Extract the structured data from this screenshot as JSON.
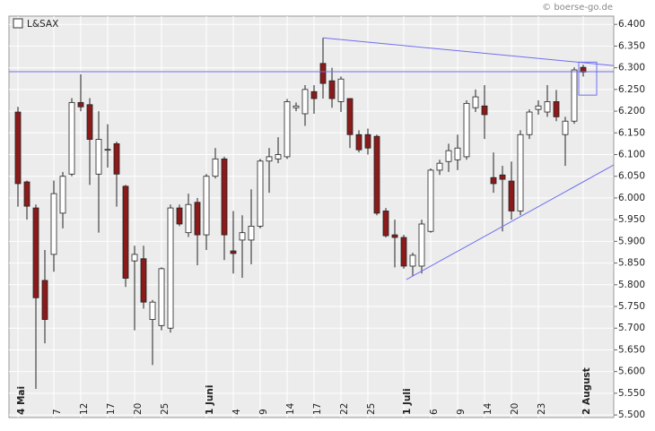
{
  "chart_data": {
    "type": "candlestick",
    "series_name": "L&SAX",
    "source": "© boerse-go.de",
    "categories": [
      "4 Mai",
      null,
      null,
      null,
      "7",
      null,
      null,
      "12",
      null,
      null,
      "17",
      null,
      null,
      "20",
      null,
      null,
      "25",
      null,
      null,
      null,
      null,
      "1 Juni",
      null,
      null,
      "4",
      null,
      null,
      "9",
      null,
      null,
      "14",
      null,
      null,
      "17",
      null,
      null,
      "22",
      null,
      null,
      "25",
      null,
      null,
      null,
      "1 Juli",
      null,
      null,
      "6",
      null,
      null,
      "9",
      null,
      null,
      "14",
      null,
      null,
      "20",
      null,
      null,
      "23",
      null,
      null,
      null,
      null,
      "2 August"
    ],
    "open": [
      6.198,
      6.037,
      5.977,
      5.81,
      5.87,
      5.965,
      6.055,
      6.22,
      6.215,
      6.055,
      6.11,
      6.125,
      6.027,
      5.855,
      5.86,
      5.72,
      5.706,
      5.7,
      5.977,
      5.92,
      5.99,
      5.915,
      6.05,
      6.09,
      5.878,
      5.903,
      5.903,
      5.935,
      6.085,
      6.09,
      6.095,
      6.208,
      6.194,
      6.245,
      6.31,
      6.27,
      6.222,
      6.229,
      6.146,
      6.146,
      6.142,
      5.97,
      5.915,
      5.909,
      5.843,
      5.843,
      5.923,
      6.064,
      6.084,
      6.088,
      6.095,
      6.208,
      6.212,
      6.047,
      6.053,
      6.039,
      5.97,
      6.146,
      6.204,
      6.198,
      6.222,
      6.146,
      6.177,
      6.301
    ],
    "high": [
      6.21,
      6.04,
      5.985,
      5.88,
      6.04,
      6.06,
      6.23,
      6.285,
      6.23,
      6.2,
      6.17,
      6.13,
      6.03,
      5.89,
      5.89,
      5.765,
      5.84,
      5.985,
      5.985,
      6.01,
      6.0,
      6.055,
      6.115,
      6.095,
      5.97,
      5.96,
      6.02,
      6.09,
      6.115,
      6.14,
      6.228,
      6.22,
      6.26,
      6.26,
      6.369,
      6.3,
      6.28,
      6.23,
      6.156,
      6.16,
      6.146,
      5.977,
      5.95,
      5.915,
      5.874,
      5.95,
      6.068,
      6.088,
      6.125,
      6.146,
      6.225,
      6.25,
      6.26,
      6.105,
      6.074,
      6.084,
      6.156,
      6.204,
      6.225,
      6.26,
      6.249,
      6.187,
      6.301,
      6.307
    ],
    "low": [
      5.98,
      5.95,
      5.56,
      5.665,
      5.83,
      5.93,
      6.05,
      6.2,
      6.03,
      5.92,
      6.07,
      5.98,
      5.795,
      5.695,
      5.745,
      5.615,
      5.695,
      5.69,
      5.935,
      5.91,
      5.845,
      5.88,
      6.045,
      5.857,
      5.826,
      5.816,
      5.847,
      5.93,
      6.012,
      6.08,
      6.09,
      6.2,
      6.166,
      6.194,
      6.229,
      6.208,
      6.198,
      6.115,
      6.105,
      6.1,
      5.96,
      5.909,
      5.84,
      5.837,
      5.82,
      5.826,
      5.92,
      6.053,
      6.06,
      6.064,
      6.088,
      6.198,
      6.136,
      6.012,
      5.923,
      5.95,
      5.96,
      6.136,
      6.192,
      6.187,
      6.177,
      6.074,
      6.171,
      6.28
    ],
    "close": [
      6.033,
      5.981,
      5.77,
      5.72,
      6.01,
      6.05,
      6.22,
      6.21,
      6.135,
      6.135,
      6.112,
      6.055,
      5.815,
      5.87,
      5.76,
      5.76,
      5.837,
      5.977,
      5.94,
      5.985,
      5.915,
      6.05,
      6.09,
      5.915,
      5.872,
      5.92,
      5.935,
      6.085,
      6.095,
      6.1,
      6.222,
      6.212,
      6.25,
      6.229,
      6.264,
      6.229,
      6.274,
      6.146,
      6.111,
      6.115,
      5.965,
      5.913,
      5.909,
      5.843,
      5.868,
      5.94,
      6.064,
      6.08,
      6.109,
      6.115,
      6.218,
      6.233,
      6.192,
      6.033,
      6.043,
      5.97,
      6.146,
      6.198,
      6.212,
      6.222,
      6.187,
      6.177,
      6.295,
      6.29
    ],
    "up_color": "#ffffff",
    "down_color": "#8b1a1a",
    "line_color": "#6f6ff0",
    "ylim": [
      5.494,
      6.419
    ],
    "yticks": [
      {
        "value": 5.5,
        "label": "5.500"
      },
      {
        "value": 5.55,
        "label": "5.550"
      },
      {
        "value": 5.6,
        "label": "5.600"
      },
      {
        "value": 5.65,
        "label": "5.650"
      },
      {
        "value": 5.7,
        "label": "5.700"
      },
      {
        "value": 5.75,
        "label": "5.750"
      },
      {
        "value": 5.8,
        "label": "5.800"
      },
      {
        "value": 5.85,
        "label": "5.850"
      },
      {
        "value": 5.9,
        "label": "5.900"
      },
      {
        "value": 5.95,
        "label": "5.950"
      },
      {
        "value": 6.0,
        "label": "6.000"
      },
      {
        "value": 6.05,
        "label": "6.050"
      },
      {
        "value": 6.1,
        "label": "6.100"
      },
      {
        "value": 6.15,
        "label": "6.150"
      },
      {
        "value": 6.2,
        "label": "6.200"
      },
      {
        "value": 6.25,
        "label": "6.250"
      },
      {
        "value": 6.3,
        "label": "6.300"
      },
      {
        "value": 6.35,
        "label": "6.350"
      },
      {
        "value": 6.4,
        "label": "6.400"
      }
    ],
    "grid": true,
    "overlays": [
      {
        "type": "hline",
        "value": 6.291
      },
      {
        "type": "trendline",
        "x": [
          34,
          66.4
        ],
        "y": [
          6.369,
          6.305
        ]
      },
      {
        "type": "trendline",
        "x": [
          43.3,
          66.4
        ],
        "y": [
          5.812,
          6.076
        ]
      },
      {
        "type": "box",
        "x": [
          62.5,
          64.5
        ],
        "y": [
          6.237,
          6.313
        ]
      }
    ]
  }
}
